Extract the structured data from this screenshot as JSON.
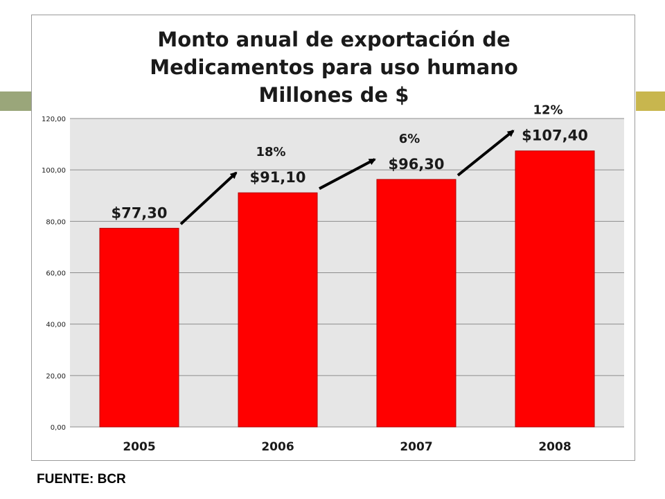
{
  "chart_data": {
    "type": "bar",
    "title_lines": [
      "Monto anual de exportación de",
      "Medicamentos para uso humano",
      "Millones de $"
    ],
    "categories": [
      "2005",
      "2006",
      "2007",
      "2008"
    ],
    "values": [
      77.3,
      91.1,
      96.3,
      107.4
    ],
    "value_labels": [
      "$77,30",
      "$91,10",
      "$96,30",
      "$107,40"
    ],
    "growth_labels": [
      "18%",
      "6%",
      "12%"
    ],
    "yticks": [
      "0,00",
      "20,00",
      "40,00",
      "60,00",
      "80,00",
      "100,00",
      "120,00"
    ],
    "ylim": [
      0,
      120
    ],
    "grid": true,
    "colors": {
      "bar": "#ff0000",
      "bar_border": "#b30000",
      "plot_bg": "#e6e6e6",
      "arrow": "#000000"
    }
  },
  "source_note": "FUENTE: BCR"
}
